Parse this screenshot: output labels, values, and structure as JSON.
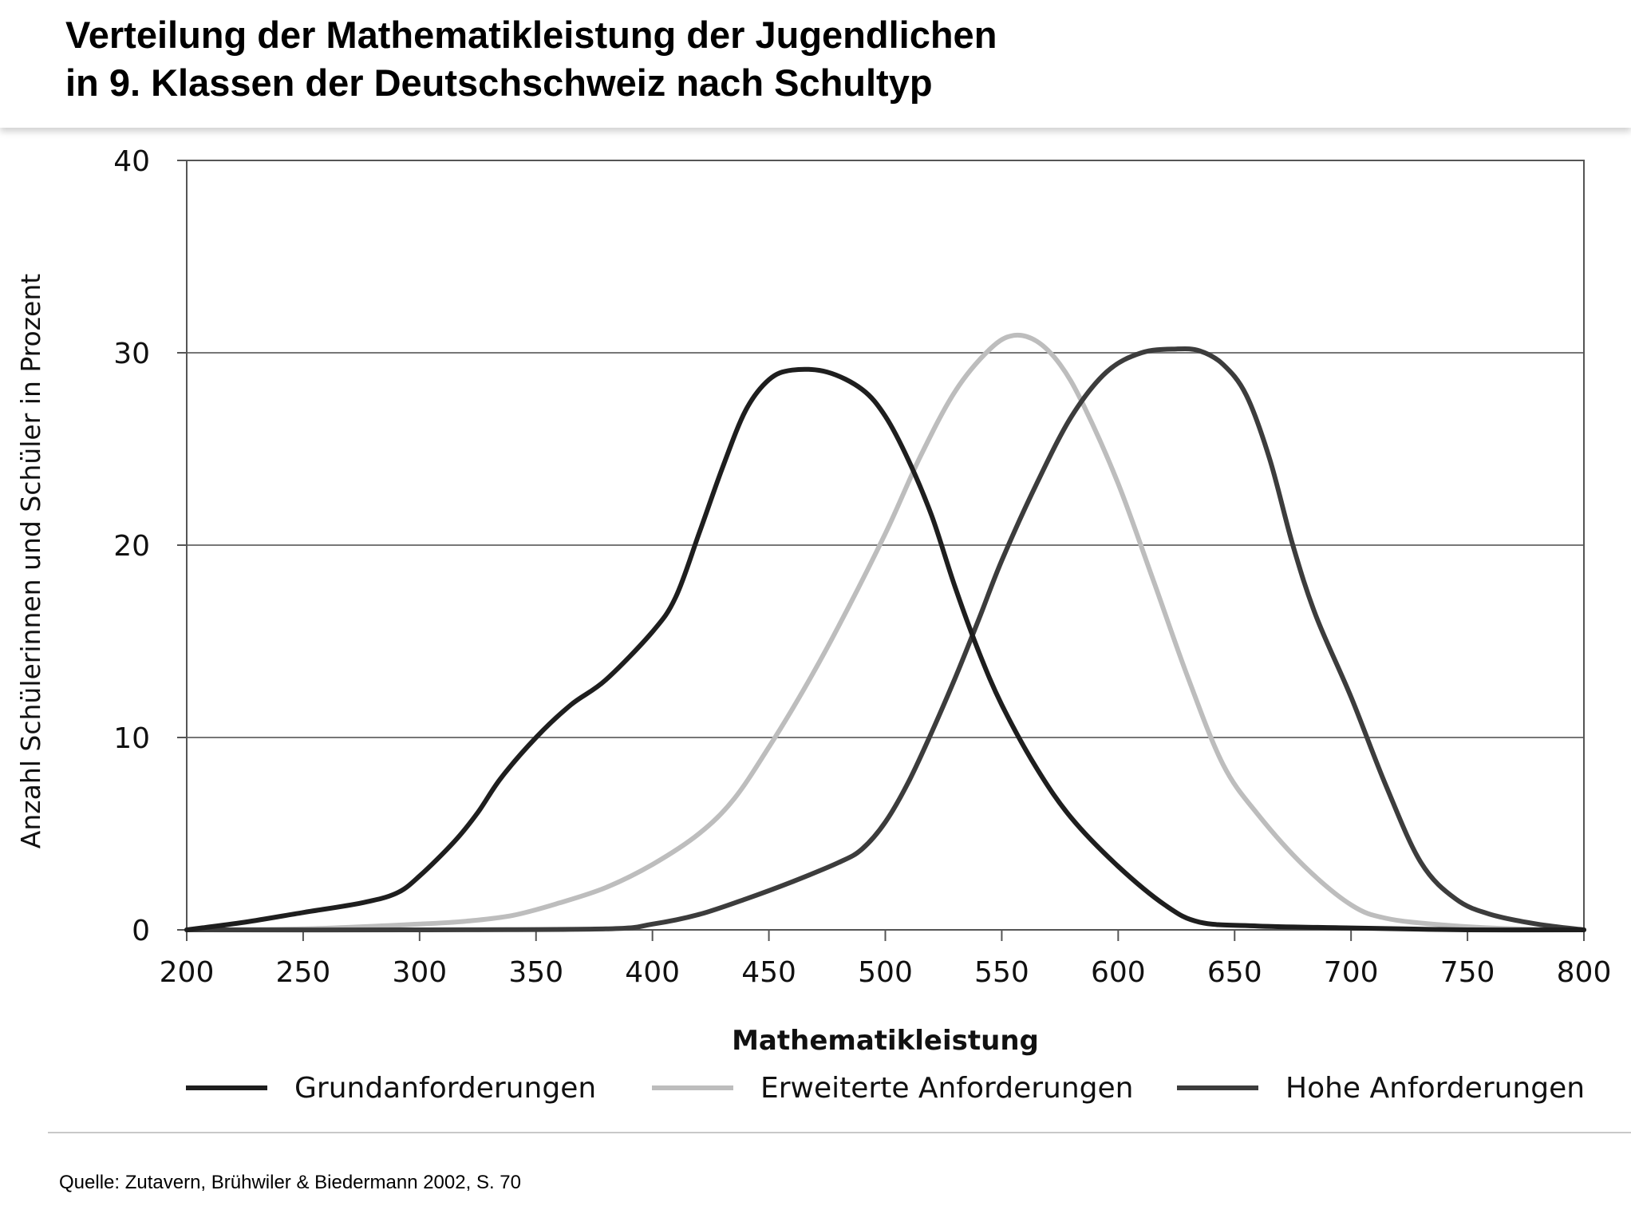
{
  "title": {
    "line1": "Verteilung der Mathematikleistung der Jugendlichen",
    "line2": "in 9. Klassen der Deutschschweiz nach Schultyp"
  },
  "source": "Quelle: Zutavern, Brühwiler & Biedermann 2002, S. 70",
  "chart_data": {
    "type": "line",
    "title": "Verteilung der Mathematikleistung der Jugendlichen in 9. Klassen der Deutschschweiz nach Schultyp",
    "xlabel": "Mathematikleistung",
    "ylabel": "Anzahl Schülerinnen und Schüler in Prozent",
    "xlim": [
      200,
      800
    ],
    "ylim": [
      0,
      40
    ],
    "x_ticks": [
      200,
      250,
      300,
      350,
      400,
      450,
      500,
      550,
      600,
      650,
      700,
      750,
      800
    ],
    "y_ticks": [
      0,
      10,
      20,
      30,
      40
    ],
    "grid": "horizontal",
    "legend_position": "bottom",
    "series": [
      {
        "name": "Grundanforderungen",
        "color": "#1e1e1e",
        "points": [
          [
            200,
            0
          ],
          [
            225,
            0.4
          ],
          [
            250,
            0.9
          ],
          [
            275,
            1.4
          ],
          [
            290,
            1.9
          ],
          [
            300,
            2.8
          ],
          [
            315,
            4.6
          ],
          [
            325,
            6.1
          ],
          [
            335,
            7.9
          ],
          [
            350,
            10.0
          ],
          [
            365,
            11.7
          ],
          [
            380,
            13.0
          ],
          [
            400,
            15.5
          ],
          [
            410,
            17.3
          ],
          [
            420,
            20.6
          ],
          [
            430,
            24.0
          ],
          [
            440,
            27.0
          ],
          [
            450,
            28.6
          ],
          [
            460,
            29.1
          ],
          [
            475,
            29.0
          ],
          [
            490,
            28.1
          ],
          [
            500,
            26.7
          ],
          [
            510,
            24.4
          ],
          [
            520,
            21.5
          ],
          [
            530,
            17.8
          ],
          [
            540,
            14.5
          ],
          [
            550,
            11.7
          ],
          [
            565,
            8.4
          ],
          [
            580,
            5.8
          ],
          [
            600,
            3.3
          ],
          [
            620,
            1.3
          ],
          [
            635,
            0.4
          ],
          [
            660,
            0.2
          ],
          [
            700,
            0.1
          ],
          [
            750,
            0
          ],
          [
            800,
            0
          ]
        ]
      },
      {
        "name": "Erweiterte Anforderungen",
        "color": "#bdbdbd",
        "points": [
          [
            200,
            0
          ],
          [
            250,
            0.05
          ],
          [
            300,
            0.3
          ],
          [
            320,
            0.45
          ],
          [
            340,
            0.75
          ],
          [
            360,
            1.4
          ],
          [
            380,
            2.2
          ],
          [
            400,
            3.4
          ],
          [
            420,
            5.0
          ],
          [
            435,
            6.8
          ],
          [
            450,
            9.5
          ],
          [
            465,
            12.5
          ],
          [
            480,
            15.8
          ],
          [
            500,
            20.6
          ],
          [
            515,
            24.6
          ],
          [
            530,
            28.0
          ],
          [
            545,
            30.2
          ],
          [
            555,
            30.9
          ],
          [
            565,
            30.6
          ],
          [
            575,
            29.4
          ],
          [
            585,
            27.3
          ],
          [
            600,
            23.2
          ],
          [
            615,
            18.2
          ],
          [
            630,
            13.1
          ],
          [
            645,
            8.6
          ],
          [
            660,
            6.0
          ],
          [
            680,
            3.3
          ],
          [
            700,
            1.3
          ],
          [
            715,
            0.6
          ],
          [
            740,
            0.25
          ],
          [
            770,
            0.05
          ],
          [
            800,
            0
          ]
        ]
      },
      {
        "name": "Hohe Anforderungen",
        "color": "#3c3c3c",
        "points": [
          [
            200,
            0
          ],
          [
            300,
            0
          ],
          [
            380,
            0.05
          ],
          [
            400,
            0.3
          ],
          [
            420,
            0.8
          ],
          [
            440,
            1.6
          ],
          [
            460,
            2.5
          ],
          [
            480,
            3.5
          ],
          [
            490,
            4.2
          ],
          [
            500,
            5.6
          ],
          [
            510,
            7.7
          ],
          [
            520,
            10.3
          ],
          [
            530,
            13.1
          ],
          [
            540,
            16.1
          ],
          [
            550,
            19.2
          ],
          [
            565,
            23.2
          ],
          [
            580,
            26.7
          ],
          [
            595,
            29.0
          ],
          [
            610,
            30.0
          ],
          [
            625,
            30.2
          ],
          [
            635,
            30.1
          ],
          [
            645,
            29.4
          ],
          [
            655,
            27.8
          ],
          [
            665,
            24.5
          ],
          [
            675,
            20.0
          ],
          [
            685,
            16.3
          ],
          [
            700,
            12.1
          ],
          [
            715,
            7.5
          ],
          [
            730,
            3.5
          ],
          [
            745,
            1.6
          ],
          [
            760,
            0.8
          ],
          [
            780,
            0.3
          ],
          [
            800,
            0
          ]
        ]
      }
    ]
  }
}
